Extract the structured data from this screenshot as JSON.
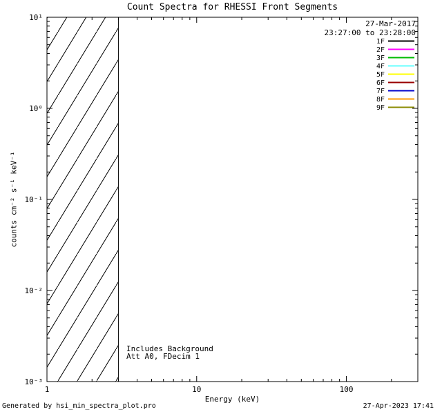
{
  "title": "Count Spectra for RHESSI Front Segments",
  "legend": {
    "date": "27-Mar-2017",
    "time_range": "23:27:00 to 23:28:00"
  },
  "annotations": {
    "line1": "Includes Background",
    "line2": "Att A0, FDecim 1"
  },
  "axes": {
    "xlabel": "Energy (keV)",
    "ylabel": "counts cm⁻² s⁻¹ keV⁻¹"
  },
  "footer": {
    "left": "Generated by hsi_min_spectra_plot.pro",
    "right": "27-Apr-2023 17:41"
  },
  "chart_data": {
    "type": "line",
    "title": "Count Spectra for RHESSI Front Segments",
    "xlabel": "Energy (keV)",
    "ylabel": "counts cm^-2 s^-1 keV^-1",
    "x_scale": "log",
    "y_scale": "log",
    "xlim": [
      1,
      300
    ],
    "ylim": [
      0.001,
      10
    ],
    "grid": false,
    "x_ticks": {
      "values": [
        1,
        10,
        100
      ],
      "labels": [
        "1",
        "10",
        "100"
      ]
    },
    "y_ticks": {
      "values": [
        0.001,
        0.01,
        0.1,
        1,
        10
      ],
      "labels": [
        "10⁻³",
        "10⁻²",
        "10⁻¹",
        "10⁰",
        "10¹"
      ]
    },
    "hatched_region": {
      "x_start": 1,
      "x_end": 3,
      "style": "diagonal-hatch",
      "meaning": "excluded low-energy band"
    },
    "time_interval": {
      "date": "27-Mar-2017",
      "range": "23:27:00 to 23:28:00"
    },
    "notes": [
      "Includes Background",
      "Att A0, FDecim 1"
    ],
    "legend_position": "upper-right-inside",
    "series": [],
    "legend_entries": [
      {
        "label": "1F",
        "color": "#000000"
      },
      {
        "label": "2F",
        "color": "#ff00ff"
      },
      {
        "label": "3F",
        "color": "#00bb00"
      },
      {
        "label": "4F",
        "color": "#66ffff"
      },
      {
        "label": "5F",
        "color": "#ffff00"
      },
      {
        "label": "6F",
        "color": "#990000"
      },
      {
        "label": "7F",
        "color": "#0000cc"
      },
      {
        "label": "8F",
        "color": "#ff9900"
      },
      {
        "label": "9F",
        "color": "#8a8a00"
      }
    ]
  }
}
